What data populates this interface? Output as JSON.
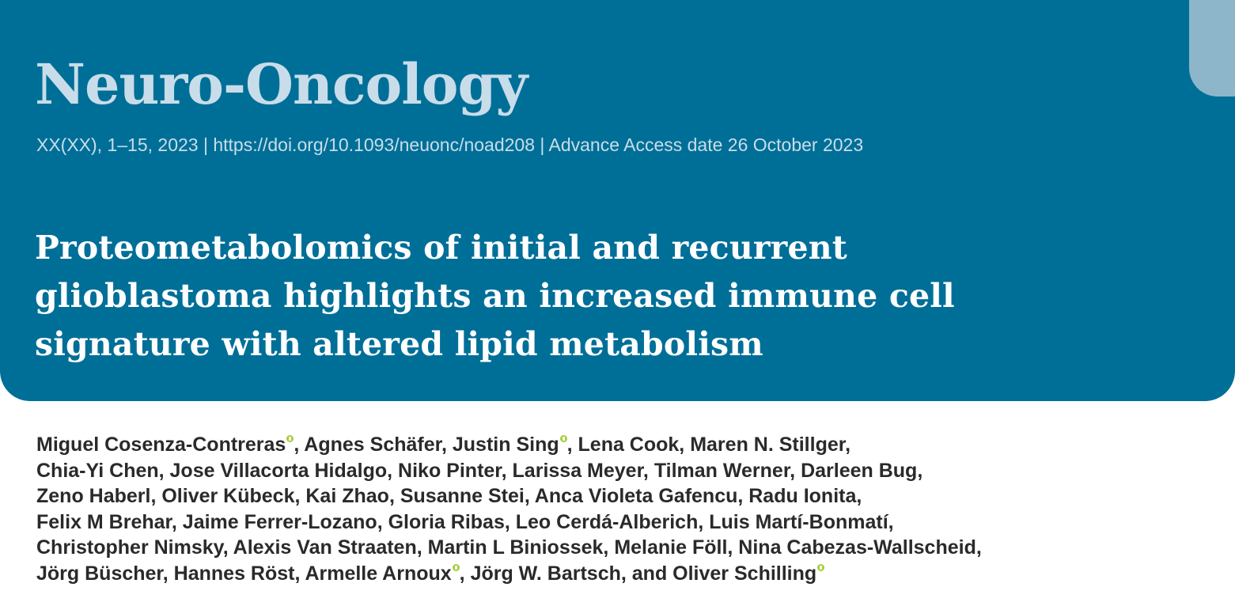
{
  "header": {
    "journal_title": "Neuro-Oncology",
    "citation_line": "XX(XX), 1–15, 2023 | https://doi.org/10.1093/neuonc/noad208 | Advance Access date 26 October 2023",
    "accent_color": "#006f98",
    "tab_color": "#8db6cb"
  },
  "article": {
    "title_lines": [
      "Proteometabolomics of initial and recurrent",
      "glioblastoma highlights an increased immune cell",
      "signature with altered lipid metabolism"
    ]
  },
  "authors": {
    "orcid_icon": "orcid-icon",
    "orcid_color": "#a6ce39",
    "line1": {
      "a": "Miguel Cosenza-Contreras",
      "b": ", Agnes Schäfer, Justin Sing",
      "c": ", Lena Cook, Maren N. Stillger,"
    },
    "line2": "Chia-Yi Chen, Jose Villacorta Hidalgo, Niko Pinter, Larissa Meyer, Tilman Werner, Darleen Bug,",
    "line3": "Zeno Haberl, Oliver Kübeck, Kai Zhao, Susanne Stei, Anca Violeta Gafencu, Radu Ionita,",
    "line4": "Felix M Brehar, Jaime Ferrer-Lozano, Gloria Ribas, Leo Cerdá-Alberich, Luis Martí-Bonmatí,",
    "line5": "Christopher Nimsky, Alexis Van Straaten, Martin L Biniossek, Melanie Föll, Nina Cabezas-Wallscheid,",
    "line6": {
      "a": "Jörg Büscher, Hannes Röst, Armelle Arnoux",
      "b": ", Jörg W. Bartsch, and Oliver Schilling"
    }
  }
}
